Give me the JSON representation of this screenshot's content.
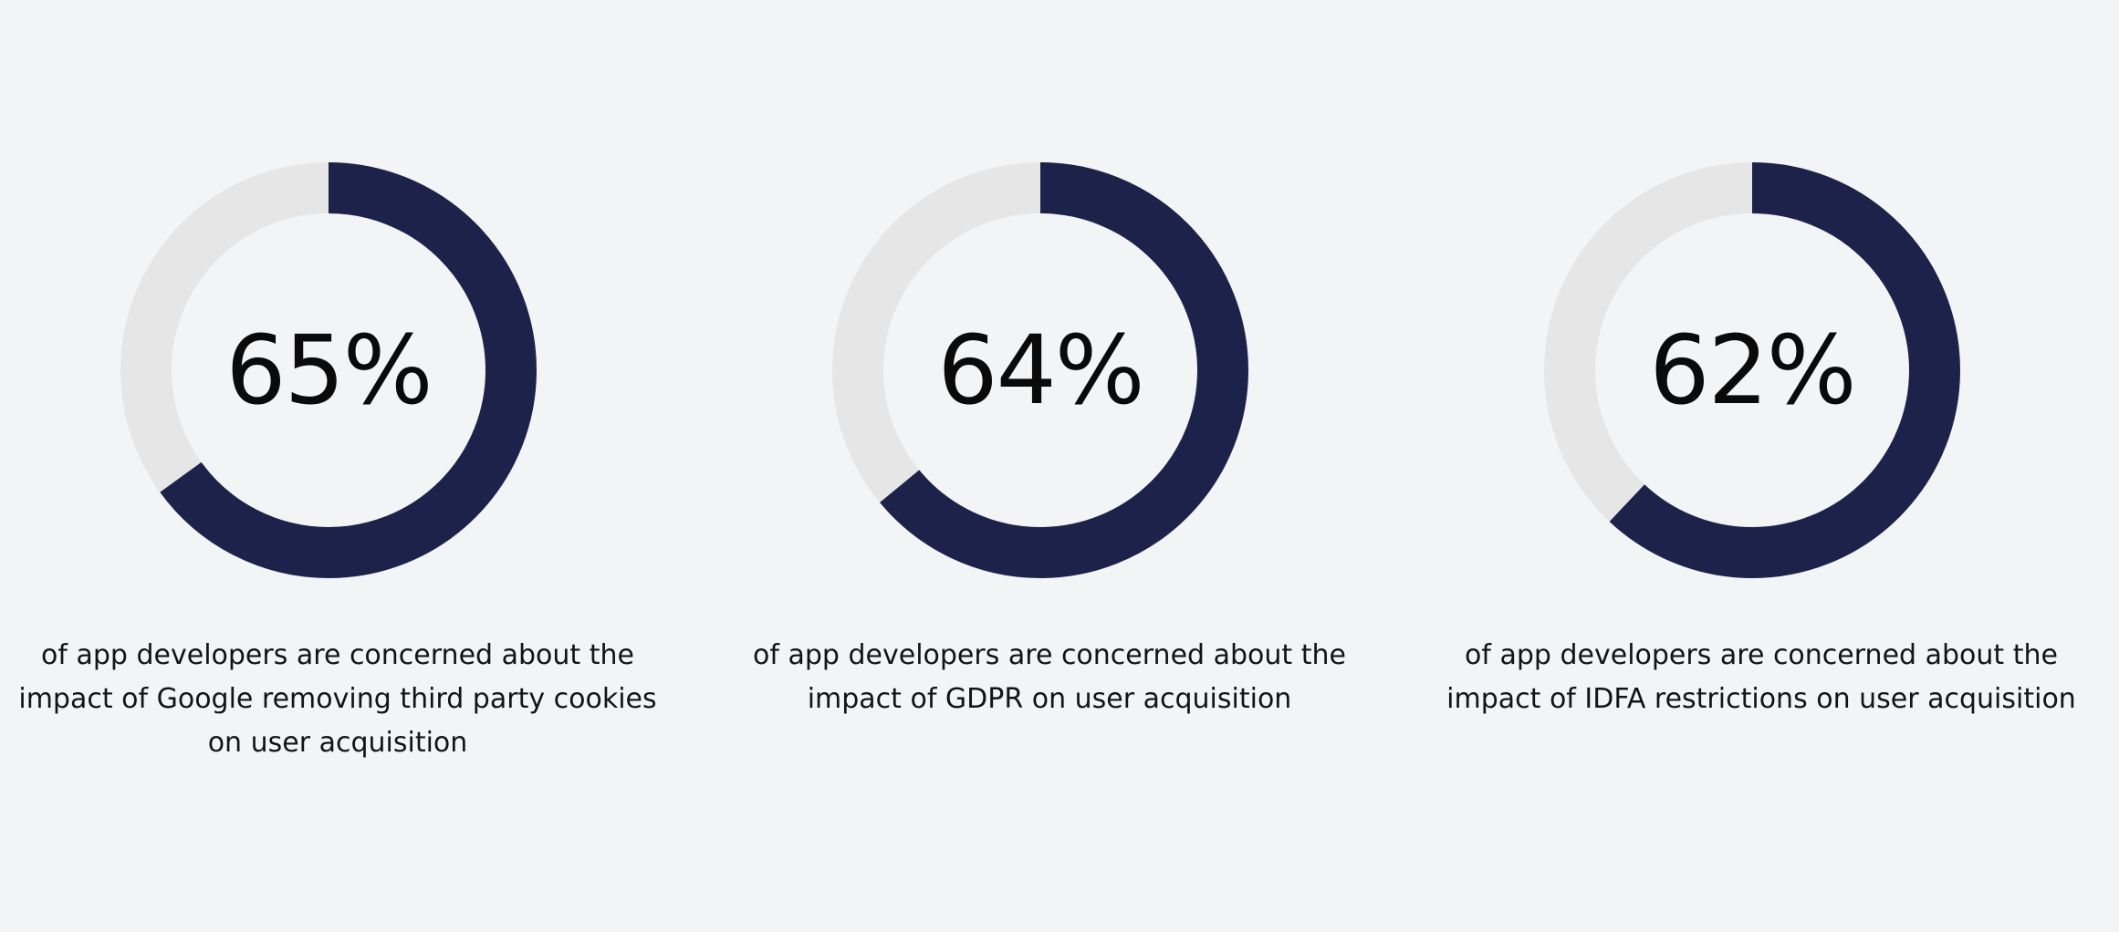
{
  "colors": {
    "background": "#f3f4f6",
    "track": "#e6e6e6",
    "fill": "#1d224b",
    "text": "#0a0a0a"
  },
  "chart_data": [
    {
      "type": "pie",
      "style": "donut",
      "value": 65,
      "max": 100,
      "center_label": "65%",
      "caption": "of app developers are concerned about the impact of Google removing third party cookies on user acquisition"
    },
    {
      "type": "pie",
      "style": "donut",
      "value": 64,
      "max": 100,
      "center_label": "64%",
      "caption": "of app developers are concerned about the impact of GDPR on user acquisition"
    },
    {
      "type": "pie",
      "style": "donut",
      "value": 62,
      "max": 100,
      "center_label": "62%",
      "caption": "of app developers are concerned about the impact of IDFA restrictions on user acquisition"
    }
  ]
}
